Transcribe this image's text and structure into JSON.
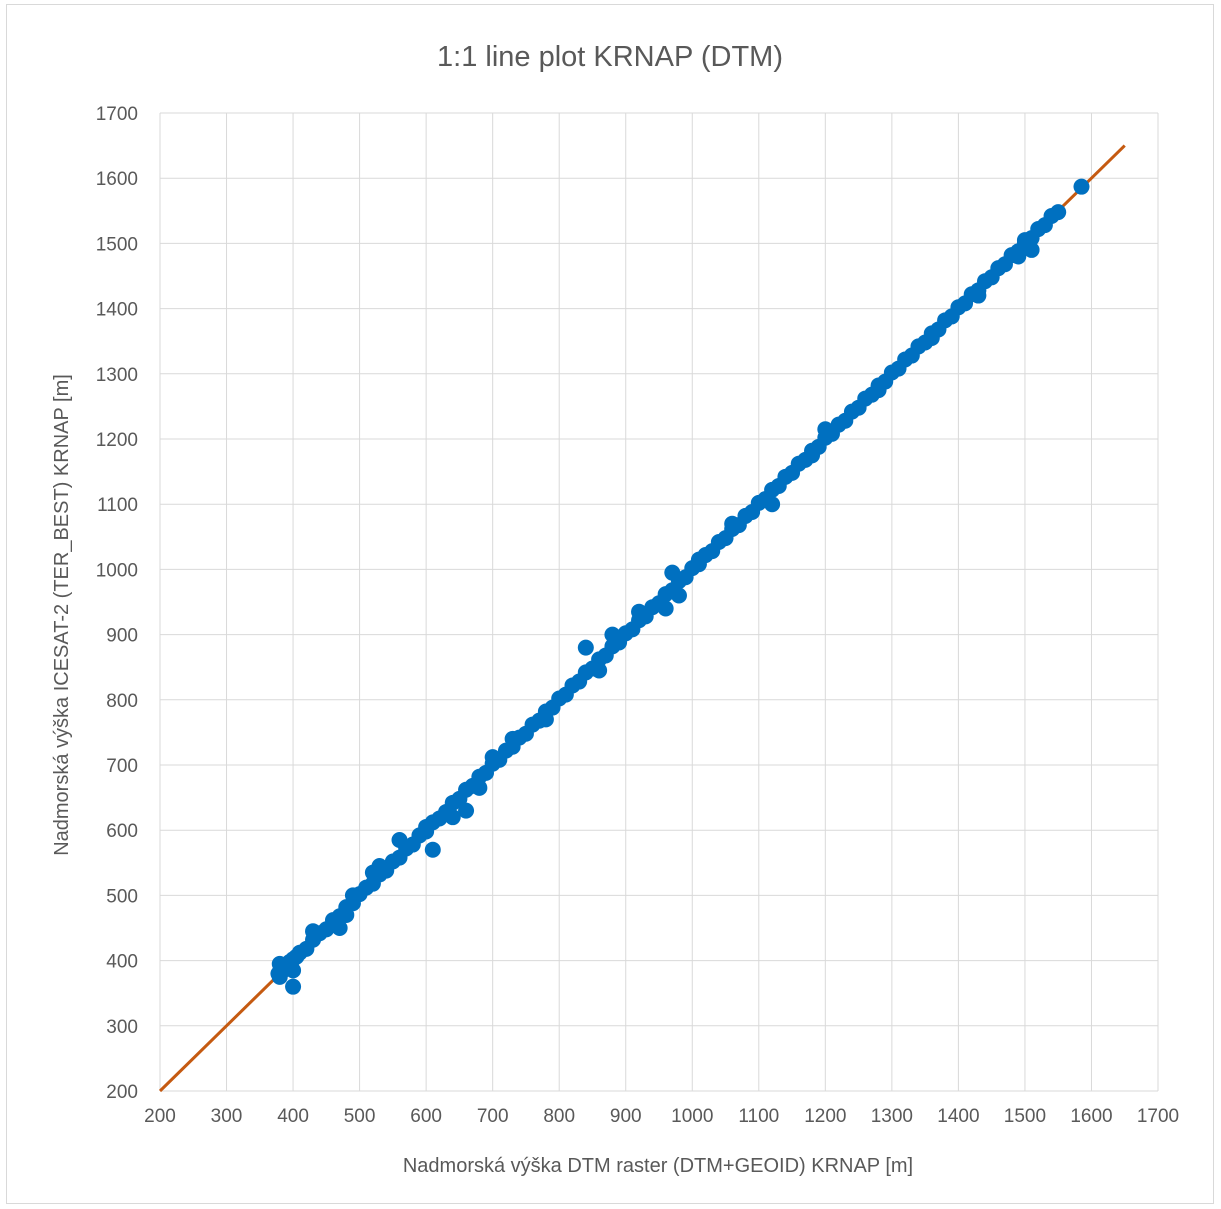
{
  "chart_data": {
    "type": "scatter",
    "title": "1:1 line plot KRNAP (DTM)",
    "xlabel": "Nadmorská výška DTM raster (DTM+GEOID) KRNAP [m]",
    "ylabel": "Nadmorská výška ICESAT-2 (TER_BEST) KRNAP [m]",
    "xlim": [
      200,
      1700
    ],
    "ylim": [
      200,
      1700
    ],
    "x_ticks": [
      "200",
      "300",
      "400",
      "500",
      "600",
      "700",
      "800",
      "900",
      "1000",
      "1100",
      "1200",
      "1300",
      "1400",
      "1500",
      "1600",
      "1700"
    ],
    "y_ticks": [
      "200",
      "300",
      "400",
      "500",
      "600",
      "700",
      "800",
      "900",
      "1000",
      "1100",
      "1200",
      "1300",
      "1400",
      "1500",
      "1600",
      "1700"
    ],
    "grid": true,
    "legend": "none",
    "colors": {
      "points": "#0070c0",
      "line": "#c55a11",
      "grid": "#d9d9d9",
      "text": "#595959"
    },
    "reference_line": {
      "x": [
        200,
        1650
      ],
      "y": [
        200,
        1650
      ]
    },
    "series": [
      {
        "x": [
          378,
          380,
          385,
          390,
          395,
          400,
          405,
          410,
          420,
          430,
          440,
          450,
          460,
          470,
          480,
          490,
          500,
          510,
          520,
          530,
          540,
          550,
          560,
          570,
          580,
          590,
          600,
          610,
          620,
          630,
          640,
          650,
          660,
          670,
          680,
          690,
          700,
          710,
          720,
          730,
          740,
          750,
          760,
          770,
          780,
          790,
          800,
          810,
          820,
          830,
          840,
          850,
          860,
          870,
          880,
          890,
          900,
          910,
          920,
          930,
          940,
          950,
          960,
          970,
          980,
          990,
          1000,
          1010,
          1020,
          1030,
          1040,
          1050,
          1060,
          1070,
          1080,
          1090,
          1100,
          1110,
          1120,
          1130,
          1140,
          1150,
          1160,
          1170,
          1180,
          1190,
          1200,
          1210,
          1220,
          1230,
          1240,
          1250,
          1260,
          1270,
          1280,
          1290,
          1300,
          1310,
          1320,
          1330,
          1340,
          1350,
          1360,
          1370,
          1380,
          1390,
          1400,
          1410,
          1420,
          1430,
          1440,
          1450,
          1460,
          1470,
          1480,
          1490,
          1500,
          1510,
          1520,
          1530,
          1540,
          1550,
          1585,
          400,
          430,
          470,
          480,
          530,
          560,
          610,
          660,
          700,
          840,
          860,
          960,
          970,
          1010,
          1120,
          1200,
          1490,
          1510,
          400,
          380,
          490,
          520,
          600,
          640,
          680,
          730,
          780,
          880,
          920,
          980,
          1060,
          1180,
          1280,
          1360,
          1430,
          1500
        ],
        "y": [
          380,
          375,
          385,
          392,
          398,
          402,
          406,
          412,
          418,
          432,
          442,
          448,
          462,
          468,
          482,
          488,
          502,
          512,
          518,
          532,
          538,
          552,
          558,
          572,
          578,
          592,
          598,
          612,
          618,
          628,
          642,
          648,
          662,
          668,
          682,
          688,
          702,
          708,
          722,
          728,
          742,
          748,
          762,
          768,
          782,
          788,
          802,
          808,
          822,
          828,
          842,
          848,
          862,
          868,
          882,
          888,
          902,
          908,
          922,
          928,
          942,
          948,
          962,
          968,
          982,
          988,
          1002,
          1008,
          1022,
          1028,
          1042,
          1048,
          1062,
          1068,
          1082,
          1088,
          1102,
          1108,
          1122,
          1128,
          1142,
          1148,
          1162,
          1168,
          1182,
          1188,
          1202,
          1208,
          1222,
          1228,
          1242,
          1248,
          1262,
          1268,
          1282,
          1288,
          1302,
          1308,
          1322,
          1328,
          1342,
          1348,
          1362,
          1368,
          1382,
          1388,
          1402,
          1408,
          1422,
          1428,
          1442,
          1448,
          1462,
          1468,
          1482,
          1488,
          1502,
          1508,
          1522,
          1528,
          1542,
          1548,
          1587,
          360,
          445,
          450,
          470,
          545,
          585,
          570,
          630,
          712,
          880,
          845,
          940,
          995,
          1015,
          1100,
          1215,
          1480,
          1490,
          385,
          395,
          500,
          535,
          605,
          620,
          665,
          740,
          770,
          900,
          935,
          960,
          1070,
          1175,
          1275,
          1355,
          1420,
          1505
        ]
      }
    ]
  }
}
